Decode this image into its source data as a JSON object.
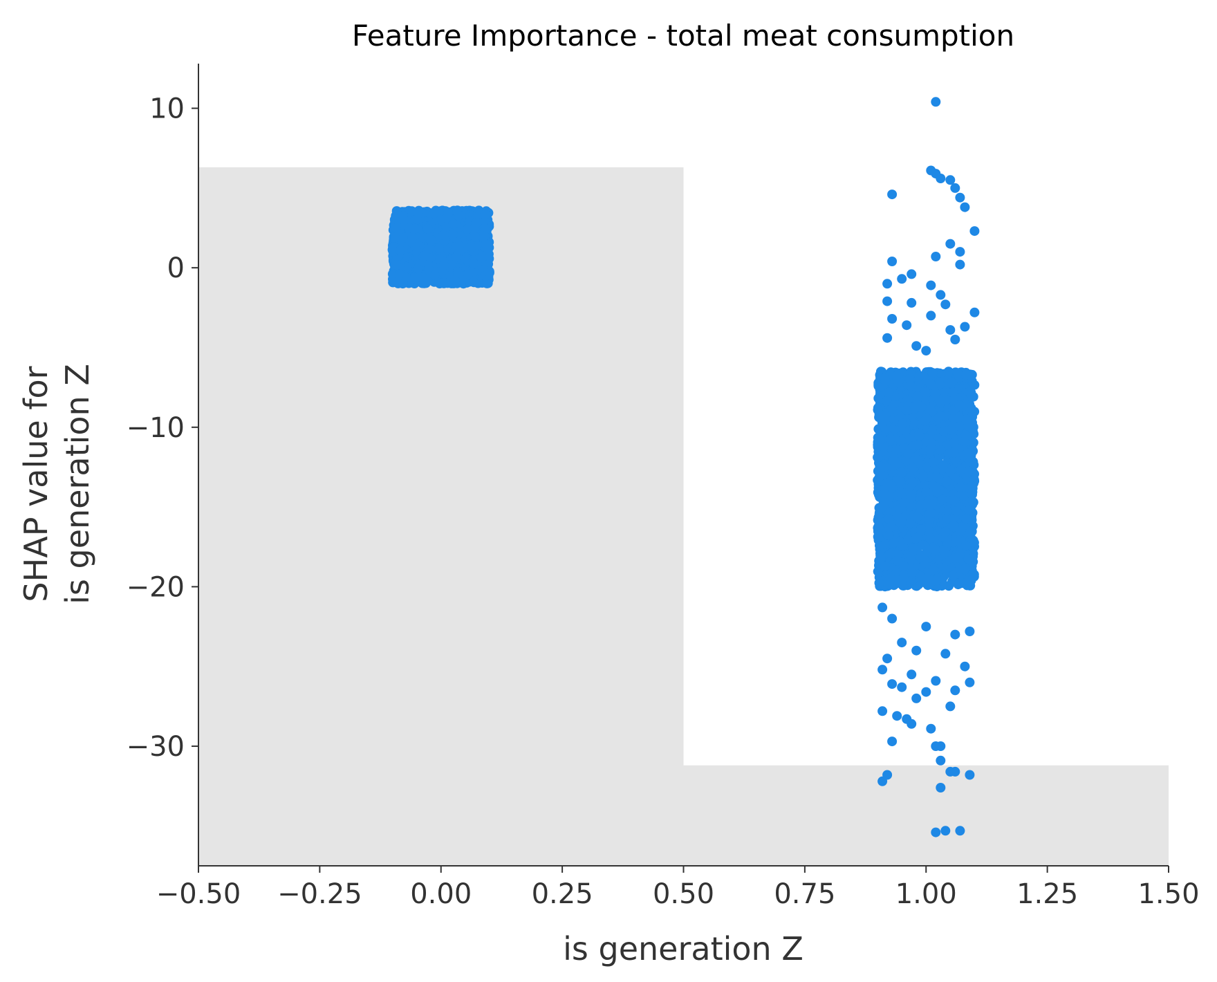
{
  "chart_data": {
    "type": "scatter",
    "title": "Feature Importance - total meat consumption",
    "xlabel": "is generation Z",
    "ylabel_lines": [
      "SHAP value for",
      "is generation Z"
    ],
    "xlim": [
      -0.5,
      1.5
    ],
    "ylim": [
      -37.5,
      12.8
    ],
    "xticks": [
      -0.5,
      -0.25,
      0.0,
      0.25,
      0.5,
      0.75,
      1.0,
      1.25,
      1.5
    ],
    "xtick_labels": [
      "−0.50",
      "−0.25",
      "0.00",
      "0.25",
      "0.50",
      "0.75",
      "1.00",
      "1.25",
      "1.50"
    ],
    "yticks": [
      10,
      0,
      -10,
      -20,
      -30
    ],
    "ytick_labels": [
      "10",
      "0",
      "−10",
      "−20",
      "−30"
    ],
    "grid": false,
    "legend": "none",
    "background_bars": [
      {
        "x0": -0.5,
        "x1": 0.5,
        "y_top": 6.3
      },
      {
        "x0": 0.5,
        "x1": 1.5,
        "y_top": -31.2
      }
    ],
    "clusters": [
      {
        "x_center": 0.0,
        "x_jitter": 0.1,
        "y_core_min": -1.0,
        "y_core_max": 3.6
      },
      {
        "x_center": 1.0,
        "x_jitter": 0.1,
        "y_core_min": -20.0,
        "y_core_max": -6.5
      }
    ],
    "outlier_points": [
      [
        1.02,
        10.4
      ],
      [
        1.01,
        6.1
      ],
      [
        1.02,
        5.9
      ],
      [
        1.03,
        5.6
      ],
      [
        1.05,
        5.5
      ],
      [
        1.06,
        5.0
      ],
      [
        1.07,
        4.4
      ],
      [
        0.93,
        4.6
      ],
      [
        1.08,
        3.8
      ],
      [
        1.1,
        2.3
      ],
      [
        1.05,
        1.5
      ],
      [
        1.07,
        1.0
      ],
      [
        1.02,
        0.7
      ],
      [
        0.93,
        0.4
      ],
      [
        1.07,
        0.2
      ],
      [
        0.95,
        -0.7
      ],
      [
        0.97,
        -0.4
      ],
      [
        0.92,
        -1.0
      ],
      [
        1.01,
        -1.1
      ],
      [
        1.03,
        -1.7
      ],
      [
        0.92,
        -2.1
      ],
      [
        1.04,
        -2.3
      ],
      [
        0.97,
        -2.2
      ],
      [
        1.01,
        -3.0
      ],
      [
        0.93,
        -3.2
      ],
      [
        1.1,
        -2.8
      ],
      [
        0.96,
        -3.6
      ],
      [
        1.05,
        -3.9
      ],
      [
        1.08,
        -3.7
      ],
      [
        0.92,
        -4.4
      ],
      [
        0.98,
        -4.9
      ],
      [
        1.0,
        -5.2
      ],
      [
        1.06,
        -4.5
      ],
      [
        0.91,
        -21.3
      ],
      [
        0.93,
        -22.0
      ],
      [
        1.0,
        -22.5
      ],
      [
        1.06,
        -23.0
      ],
      [
        0.95,
        -23.5
      ],
      [
        1.09,
        -22.8
      ],
      [
        0.92,
        -24.5
      ],
      [
        0.98,
        -24.0
      ],
      [
        1.04,
        -24.2
      ],
      [
        1.08,
        -25.0
      ],
      [
        0.91,
        -25.2
      ],
      [
        0.97,
        -25.5
      ],
      [
        1.02,
        -25.9
      ],
      [
        1.06,
        -26.5
      ],
      [
        0.93,
        -26.1
      ],
      [
        0.95,
        -26.3
      ],
      [
        1.0,
        -26.6
      ],
      [
        1.09,
        -26.0
      ],
      [
        0.98,
        -27.0
      ],
      [
        1.05,
        -27.5
      ],
      [
        0.91,
        -27.8
      ],
      [
        0.96,
        -28.3
      ],
      [
        0.94,
        -28.1
      ],
      [
        0.97,
        -28.6
      ],
      [
        1.01,
        -28.9
      ],
      [
        0.93,
        -29.7
      ],
      [
        1.02,
        -30.0
      ],
      [
        1.03,
        -30.0
      ],
      [
        1.03,
        -30.9
      ],
      [
        1.05,
        -31.6
      ],
      [
        1.06,
        -31.6
      ],
      [
        0.92,
        -31.8
      ],
      [
        1.09,
        -31.8
      ],
      [
        0.91,
        -32.2
      ],
      [
        1.03,
        -32.6
      ],
      [
        1.02,
        -35.4
      ],
      [
        1.04,
        -35.3
      ],
      [
        1.07,
        -35.3
      ]
    ],
    "colors": {
      "point": "#1e88e5",
      "band": "#e5e5e5",
      "axis": "#333333"
    }
  }
}
